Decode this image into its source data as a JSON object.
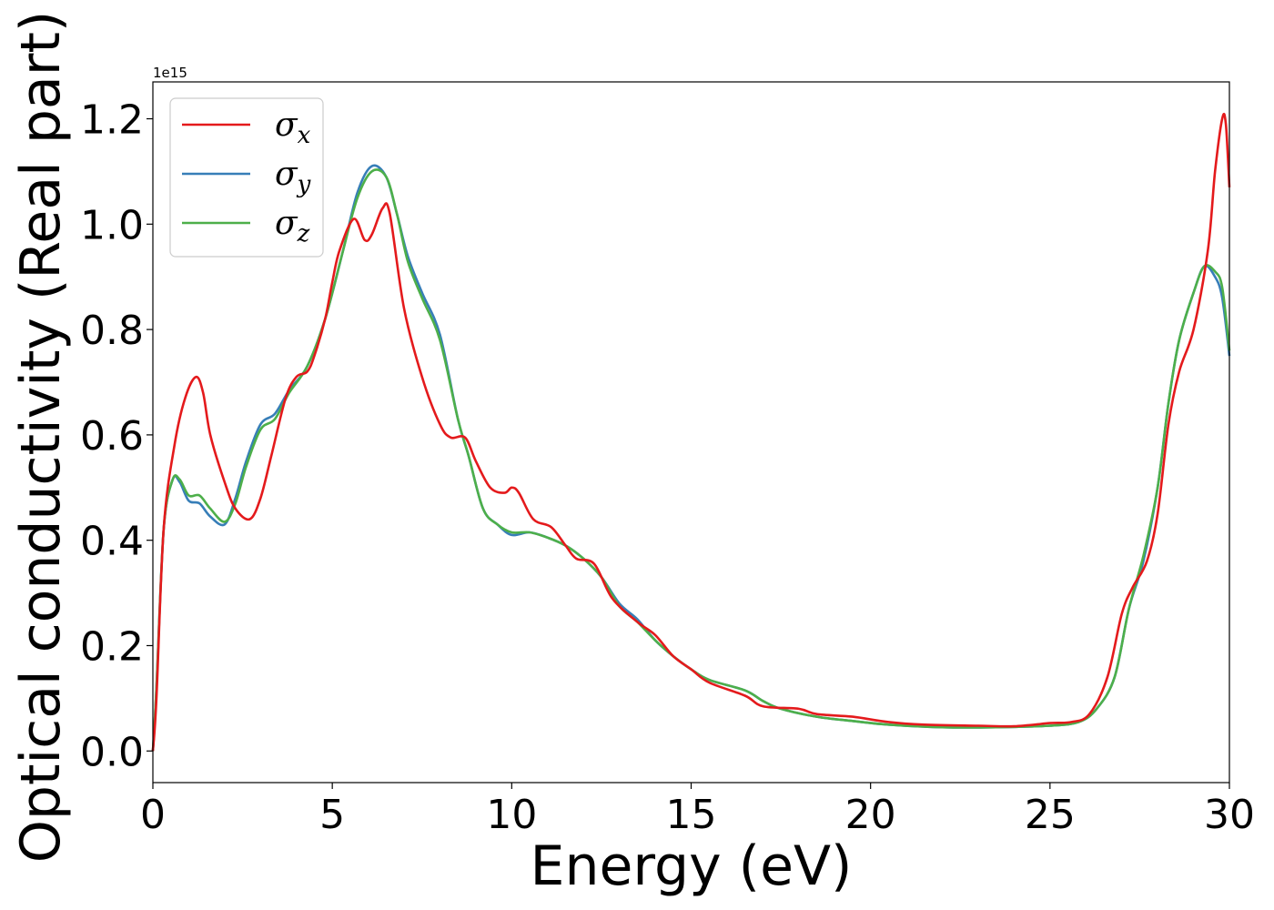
{
  "chart_data": {
    "type": "line",
    "xlabel": "Energy (eV)",
    "ylabel": "Optical conductivity (Real part)",
    "y_offset_label": "1e15",
    "xlim": [
      0,
      30
    ],
    "ylim": [
      -0.06,
      1.27
    ],
    "x_ticks": [
      0,
      5,
      10,
      15,
      20,
      25,
      30
    ],
    "x_tick_labels": [
      "0",
      "5",
      "10",
      "15",
      "20",
      "25",
      "30"
    ],
    "y_ticks": [
      0.0,
      0.2,
      0.4,
      0.6,
      0.8,
      1.0,
      1.2
    ],
    "y_tick_labels": [
      "0.0",
      "0.2",
      "0.4",
      "0.6",
      "0.8",
      "1.0",
      "1.2"
    ],
    "grid": false,
    "legend_position": "top-left",
    "series": [
      {
        "name_base": "σ",
        "name_sub": "x",
        "color": "#e41a1c",
        "points": [
          [
            0,
            0.0
          ],
          [
            0.1,
            0.1
          ],
          [
            0.3,
            0.42
          ],
          [
            0.6,
            0.58
          ],
          [
            0.9,
            0.67
          ],
          [
            1.2,
            0.71
          ],
          [
            1.4,
            0.68
          ],
          [
            1.6,
            0.6
          ],
          [
            2.0,
            0.51
          ],
          [
            2.3,
            0.46
          ],
          [
            2.7,
            0.44
          ],
          [
            3.0,
            0.48
          ],
          [
            3.3,
            0.56
          ],
          [
            3.7,
            0.67
          ],
          [
            4.0,
            0.71
          ],
          [
            4.3,
            0.72
          ],
          [
            4.5,
            0.75
          ],
          [
            4.8,
            0.82
          ],
          [
            5.0,
            0.89
          ],
          [
            5.2,
            0.95
          ],
          [
            5.6,
            1.01
          ],
          [
            5.9,
            0.97
          ],
          [
            6.1,
            0.98
          ],
          [
            6.4,
            1.03
          ],
          [
            6.6,
            1.02
          ],
          [
            7.0,
            0.84
          ],
          [
            7.5,
            0.71
          ],
          [
            8.0,
            0.62
          ],
          [
            8.3,
            0.595
          ],
          [
            8.7,
            0.595
          ],
          [
            9.0,
            0.55
          ],
          [
            9.4,
            0.5
          ],
          [
            9.8,
            0.49
          ],
          [
            10.0,
            0.5
          ],
          [
            10.2,
            0.49
          ],
          [
            10.6,
            0.44
          ],
          [
            11.1,
            0.425
          ],
          [
            11.5,
            0.39
          ],
          [
            11.8,
            0.365
          ],
          [
            12.3,
            0.355
          ],
          [
            12.8,
            0.29
          ],
          [
            13.5,
            0.245
          ],
          [
            14.0,
            0.22
          ],
          [
            14.5,
            0.18
          ],
          [
            15.0,
            0.155
          ],
          [
            15.5,
            0.13
          ],
          [
            16.5,
            0.105
          ],
          [
            17.0,
            0.085
          ],
          [
            18.0,
            0.08
          ],
          [
            18.5,
            0.07
          ],
          [
            19.5,
            0.065
          ],
          [
            20.5,
            0.055
          ],
          [
            21.5,
            0.05
          ],
          [
            23.0,
            0.048
          ],
          [
            24.0,
            0.047
          ],
          [
            25.0,
            0.053
          ],
          [
            25.6,
            0.055
          ],
          [
            26.1,
            0.07
          ],
          [
            26.6,
            0.14
          ],
          [
            27.0,
            0.26
          ],
          [
            27.3,
            0.31
          ],
          [
            27.7,
            0.36
          ],
          [
            28.0,
            0.45
          ],
          [
            28.3,
            0.62
          ],
          [
            28.6,
            0.72
          ],
          [
            29.0,
            0.8
          ],
          [
            29.4,
            0.95
          ],
          [
            29.6,
            1.1
          ],
          [
            29.8,
            1.2
          ],
          [
            29.9,
            1.19
          ],
          [
            30.0,
            1.07
          ]
        ]
      },
      {
        "name_base": "σ",
        "name_sub": "y",
        "color": "#377eb8",
        "points": [
          [
            0,
            0.0
          ],
          [
            0.1,
            0.12
          ],
          [
            0.3,
            0.42
          ],
          [
            0.55,
            0.515
          ],
          [
            0.75,
            0.51
          ],
          [
            1.0,
            0.475
          ],
          [
            1.3,
            0.47
          ],
          [
            1.6,
            0.445
          ],
          [
            2.0,
            0.43
          ],
          [
            2.3,
            0.48
          ],
          [
            2.6,
            0.55
          ],
          [
            3.0,
            0.62
          ],
          [
            3.4,
            0.64
          ],
          [
            3.8,
            0.685
          ],
          [
            4.3,
            0.73
          ],
          [
            4.8,
            0.82
          ],
          [
            5.3,
            0.95
          ],
          [
            5.7,
            1.06
          ],
          [
            6.1,
            1.11
          ],
          [
            6.5,
            1.09
          ],
          [
            6.8,
            1.02
          ],
          [
            7.1,
            0.94
          ],
          [
            7.5,
            0.87
          ],
          [
            8.0,
            0.79
          ],
          [
            8.5,
            0.63
          ],
          [
            8.8,
            0.56
          ],
          [
            9.2,
            0.46
          ],
          [
            9.6,
            0.43
          ],
          [
            10.0,
            0.41
          ],
          [
            10.5,
            0.415
          ],
          [
            11.0,
            0.405
          ],
          [
            11.5,
            0.39
          ],
          [
            12.0,
            0.365
          ],
          [
            12.5,
            0.33
          ],
          [
            13.0,
            0.28
          ],
          [
            13.5,
            0.25
          ],
          [
            14.0,
            0.21
          ],
          [
            14.5,
            0.18
          ],
          [
            15.0,
            0.155
          ],
          [
            15.5,
            0.135
          ],
          [
            16.5,
            0.115
          ],
          [
            17.0,
            0.095
          ],
          [
            17.5,
            0.08
          ],
          [
            18.5,
            0.065
          ],
          [
            19.5,
            0.057
          ],
          [
            20.5,
            0.05
          ],
          [
            22.0,
            0.045
          ],
          [
            23.5,
            0.045
          ],
          [
            25.0,
            0.048
          ],
          [
            25.8,
            0.055
          ],
          [
            26.3,
            0.08
          ],
          [
            26.8,
            0.14
          ],
          [
            27.2,
            0.27
          ],
          [
            27.6,
            0.36
          ],
          [
            28.0,
            0.5
          ],
          [
            28.3,
            0.66
          ],
          [
            28.6,
            0.78
          ],
          [
            29.0,
            0.87
          ],
          [
            29.3,
            0.92
          ],
          [
            29.6,
            0.9
          ],
          [
            29.8,
            0.86
          ],
          [
            30.0,
            0.75
          ]
        ]
      },
      {
        "name_base": "σ",
        "name_sub": "z",
        "color": "#4daf4a",
        "points": [
          [
            0,
            0.0
          ],
          [
            0.1,
            0.12
          ],
          [
            0.3,
            0.42
          ],
          [
            0.55,
            0.515
          ],
          [
            0.75,
            0.515
          ],
          [
            1.0,
            0.485
          ],
          [
            1.3,
            0.485
          ],
          [
            1.6,
            0.46
          ],
          [
            2.0,
            0.435
          ],
          [
            2.3,
            0.47
          ],
          [
            2.6,
            0.54
          ],
          [
            3.0,
            0.61
          ],
          [
            3.4,
            0.63
          ],
          [
            3.8,
            0.68
          ],
          [
            4.3,
            0.73
          ],
          [
            4.8,
            0.82
          ],
          [
            5.3,
            0.95
          ],
          [
            5.7,
            1.05
          ],
          [
            6.1,
            1.1
          ],
          [
            6.5,
            1.09
          ],
          [
            6.8,
            1.02
          ],
          [
            7.1,
            0.93
          ],
          [
            7.5,
            0.86
          ],
          [
            8.0,
            0.78
          ],
          [
            8.5,
            0.63
          ],
          [
            8.8,
            0.56
          ],
          [
            9.2,
            0.46
          ],
          [
            9.6,
            0.43
          ],
          [
            10.0,
            0.415
          ],
          [
            10.5,
            0.415
          ],
          [
            11.0,
            0.405
          ],
          [
            11.5,
            0.39
          ],
          [
            12.0,
            0.365
          ],
          [
            12.5,
            0.33
          ],
          [
            13.0,
            0.275
          ],
          [
            13.5,
            0.245
          ],
          [
            14.0,
            0.21
          ],
          [
            14.5,
            0.18
          ],
          [
            15.0,
            0.155
          ],
          [
            15.5,
            0.135
          ],
          [
            16.5,
            0.115
          ],
          [
            17.0,
            0.095
          ],
          [
            17.5,
            0.08
          ],
          [
            18.5,
            0.065
          ],
          [
            19.5,
            0.057
          ],
          [
            20.5,
            0.05
          ],
          [
            22.0,
            0.045
          ],
          [
            23.5,
            0.045
          ],
          [
            25.0,
            0.048
          ],
          [
            25.8,
            0.055
          ],
          [
            26.3,
            0.08
          ],
          [
            26.8,
            0.14
          ],
          [
            27.2,
            0.27
          ],
          [
            27.6,
            0.37
          ],
          [
            28.0,
            0.5
          ],
          [
            28.3,
            0.66
          ],
          [
            28.6,
            0.78
          ],
          [
            29.0,
            0.87
          ],
          [
            29.3,
            0.92
          ],
          [
            29.6,
            0.91
          ],
          [
            29.8,
            0.88
          ],
          [
            30.0,
            0.76
          ]
        ]
      }
    ]
  }
}
